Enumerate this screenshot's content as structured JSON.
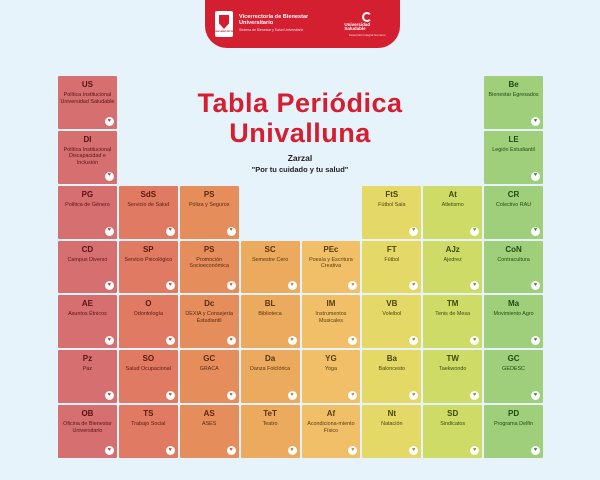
{
  "header": {
    "univ_logo_label": "Universidad del Valle",
    "vice_title": "Vicerrectoría de Bienestar Universitario",
    "vice_subtitle": "Sistema de Bienestar y Salud Universitario",
    "us_logo_label": "Universidad Saludable",
    "us_logo_sub": "Desarrollo Integral Humano"
  },
  "title": {
    "line1": "Tabla Periódica",
    "line2": "Univalluna"
  },
  "subtitle": "Zarzal",
  "slogan": "\"Por tu cuidado y tu salud\"",
  "colors": {
    "red": "#d41f31",
    "group_colors": [
      "#d66f6f",
      "#e07a62",
      "#e68d5c",
      "#ecaa5e",
      "#f0bf68",
      "#e4d867",
      "#cedb67",
      "#9fcf7b"
    ]
  },
  "elements": [
    {
      "symbol": "US",
      "name": "Política Institucional Universidad Saludable",
      "icon": "heart",
      "col": 1,
      "row": 1
    },
    {
      "symbol": "DI",
      "name": "Política Institucional Discapacidad e Inclusión",
      "icon": "heart",
      "col": 1,
      "row": 2
    },
    {
      "symbol": "PG",
      "name": "Política de Género",
      "icon": "heart",
      "col": 1,
      "row": 3
    },
    {
      "symbol": "CD",
      "name": "Campus Diverso",
      "icon": "heart",
      "col": 1,
      "row": 4
    },
    {
      "symbol": "AE",
      "name": "Asuntos Étnicos",
      "icon": "heart",
      "col": 1,
      "row": 5
    },
    {
      "symbol": "Pz",
      "name": "Paz",
      "icon": "heart",
      "col": 1,
      "row": 6
    },
    {
      "symbol": "OB",
      "name": "Oficina de Bienestar Universitario",
      "icon": "heart",
      "col": 1,
      "row": 7
    },
    {
      "symbol": "SdS",
      "name": "Servicio de Salud",
      "icon": "heart",
      "col": 2,
      "row": 3
    },
    {
      "symbol": "SP",
      "name": "Servicio Psicológico",
      "icon": "heart",
      "col": 2,
      "row": 4
    },
    {
      "symbol": "O",
      "name": "Odontología",
      "icon": "heart",
      "col": 2,
      "row": 5
    },
    {
      "symbol": "SO",
      "name": "Salud Ocupacional",
      "icon": "heart",
      "col": 2,
      "row": 6
    },
    {
      "symbol": "TS",
      "name": "Trabajo Social",
      "icon": "heart",
      "col": 2,
      "row": 7
    },
    {
      "symbol": "PS",
      "name": "Póliza y Seguros",
      "icon": "heart",
      "col": 3,
      "row": 3
    },
    {
      "symbol": "PS",
      "name": "Promoción Socioeconómica",
      "icon": "heart",
      "col": 3,
      "row": 4
    },
    {
      "symbol": "Dc",
      "name": "DEXIA y Consejería Estudiantil",
      "icon": "heart",
      "col": 3,
      "row": 5
    },
    {
      "symbol": "GC",
      "name": "GRACA",
      "icon": "heart",
      "col": 3,
      "row": 6
    },
    {
      "symbol": "AS",
      "name": "ASES",
      "icon": "heart",
      "col": 3,
      "row": 7
    },
    {
      "symbol": "SC",
      "name": "Semestre Cero",
      "icon": "heart",
      "col": 4,
      "row": 4
    },
    {
      "symbol": "BL",
      "name": "Biblioteca",
      "icon": "heart",
      "col": 4,
      "row": 5
    },
    {
      "symbol": "Da",
      "name": "Danza Folclórica",
      "icon": "heart",
      "col": 4,
      "row": 6
    },
    {
      "symbol": "TeT",
      "name": "Teatro",
      "icon": "heart",
      "col": 4,
      "row": 7
    },
    {
      "symbol": "PEc",
      "name": "Poesía y Escritura Creativa",
      "icon": "heart",
      "col": 5,
      "row": 4
    },
    {
      "symbol": "IM",
      "name": "Instrumentos Musicales",
      "icon": "heart",
      "col": 5,
      "row": 5
    },
    {
      "symbol": "YG",
      "name": "Yoga",
      "icon": "heart",
      "col": 5,
      "row": 6
    },
    {
      "symbol": "Af",
      "name": "Acondiciona-miento Físico",
      "icon": "heart",
      "col": 5,
      "row": 7
    },
    {
      "symbol": "FtS",
      "name": "Fútbol Sala",
      "icon": "heart",
      "col": 6,
      "row": 3
    },
    {
      "symbol": "FT",
      "name": "Fútbol",
      "icon": "heart",
      "col": 6,
      "row": 4
    },
    {
      "symbol": "VB",
      "name": "Voleibol",
      "icon": "heart",
      "col": 6,
      "row": 5
    },
    {
      "symbol": "Ba",
      "name": "Baloncesto",
      "icon": "heart",
      "col": 6,
      "row": 6
    },
    {
      "symbol": "Nt",
      "name": "Natación",
      "icon": "heart",
      "col": 6,
      "row": 7
    },
    {
      "symbol": "At",
      "name": "Atletismo",
      "icon": "heart",
      "col": 7,
      "row": 3
    },
    {
      "symbol": "AJz",
      "name": "Ajedrez",
      "icon": "heart",
      "col": 7,
      "row": 4
    },
    {
      "symbol": "TM",
      "name": "Tenis de Mesa",
      "icon": "heart",
      "col": 7,
      "row": 5
    },
    {
      "symbol": "TW",
      "name": "Taekwondo",
      "icon": "heart",
      "col": 7,
      "row": 6
    },
    {
      "symbol": "SD",
      "name": "Sindicatos",
      "icon": "heart",
      "col": 7,
      "row": 7
    },
    {
      "symbol": "Be",
      "name": "Bienestar Egresados",
      "icon": "heart",
      "col": 8,
      "row": 1
    },
    {
      "symbol": "LE",
      "name": "Legión Estudiantil",
      "icon": "heart",
      "col": 8,
      "row": 2
    },
    {
      "symbol": "CR",
      "name": "Colectivo RAU",
      "icon": "heart",
      "col": 8,
      "row": 3
    },
    {
      "symbol": "CoN",
      "name": "Contracultura",
      "icon": "heart",
      "col": 8,
      "row": 4
    },
    {
      "symbol": "Ma",
      "name": "Movimiento Agro",
      "icon": "heart",
      "col": 8,
      "row": 5
    },
    {
      "symbol": "GC",
      "name": "GEDESC",
      "icon": "heart",
      "col": 8,
      "row": 6
    },
    {
      "symbol": "PD",
      "name": "Programa Delfín",
      "icon": "heart",
      "col": 8,
      "row": 7
    }
  ]
}
